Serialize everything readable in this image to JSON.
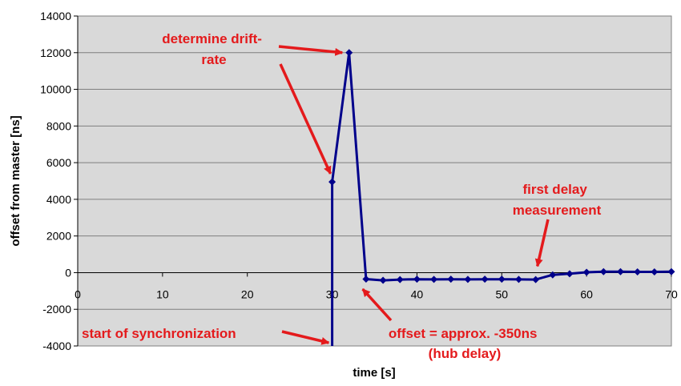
{
  "chart_data": {
    "type": "line",
    "title": "",
    "xlabel": "time [s]",
    "ylabel": "offset from master [ns]",
    "xlim": [
      0,
      70
    ],
    "ylim": [
      -4000,
      14000
    ],
    "x_ticks": [
      0,
      10,
      20,
      30,
      40,
      50,
      60,
      70
    ],
    "y_ticks": [
      -4000,
      -2000,
      0,
      2000,
      4000,
      6000,
      8000,
      10000,
      12000,
      14000
    ],
    "grid": "horizontal",
    "legend": "none",
    "series": [
      {
        "color": "#00008b",
        "x": [
          30,
          30,
          32,
          34,
          36,
          38,
          40,
          42,
          44,
          46,
          48,
          50,
          52,
          54,
          56,
          58,
          60,
          62,
          64,
          66,
          68,
          70
        ],
        "y": [
          -4000,
          4950,
          12000,
          -350,
          -420,
          -380,
          -360,
          -370,
          -360,
          -370,
          -360,
          -360,
          -370,
          -380,
          -120,
          -60,
          20,
          50,
          50,
          40,
          40,
          50
        ],
        "markers": [
          false,
          true,
          true,
          true,
          true,
          true,
          true,
          true,
          true,
          true,
          true,
          true,
          true,
          true,
          true,
          true,
          true,
          true,
          true,
          true,
          true,
          true
        ]
      }
    ],
    "annotations": [
      {
        "lines": [
          "determine drift-",
          "rate"
        ],
        "align": "center"
      },
      {
        "lines": [
          "first delay",
          "measurement"
        ],
        "align": "center"
      },
      {
        "lines": [
          "start of synchronization"
        ],
        "align": "left"
      },
      {
        "lines": [
          "offset = approx. -350ns",
          "(hub delay)"
        ],
        "align": "center"
      }
    ]
  },
  "colors": {
    "plot_bg": "#d9d9d9",
    "grid": "#7f7f7f",
    "series": "#00008b",
    "annotation": "#e41a1c"
  }
}
